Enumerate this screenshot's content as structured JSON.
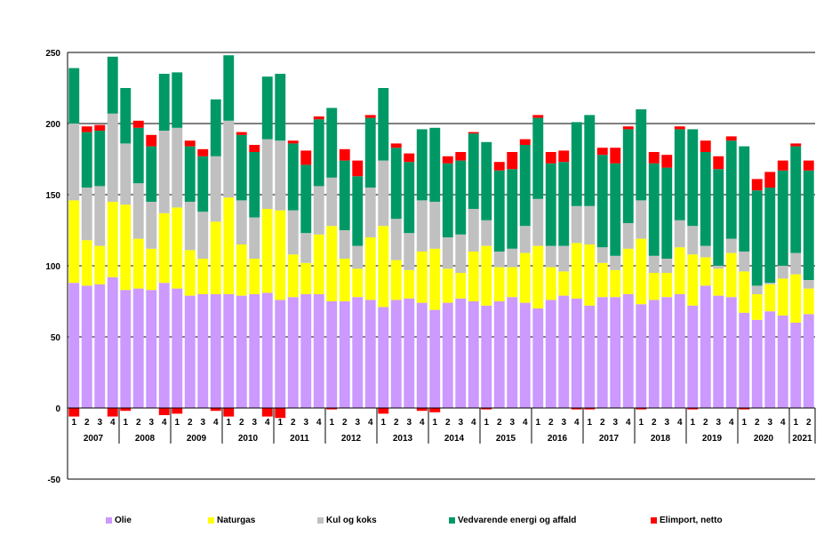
{
  "chart_data": {
    "type": "bar",
    "stacked": true,
    "title": "",
    "xlabel": "",
    "ylabel": "",
    "ylim": [
      -50,
      250
    ],
    "yticks": [
      -50,
      0,
      50,
      100,
      150,
      200,
      250
    ],
    "grid": true,
    "legend_position": "bottom",
    "quarters": [
      "1",
      "2",
      "3",
      "4",
      "1",
      "2",
      "3",
      "4",
      "1",
      "2",
      "3",
      "4",
      "1",
      "2",
      "3",
      "4",
      "1",
      "2",
      "3",
      "4",
      "1",
      "2",
      "3",
      "4",
      "1",
      "2",
      "3",
      "4",
      "1",
      "2",
      "3",
      "4",
      "1",
      "2",
      "3",
      "4",
      "1",
      "2",
      "3",
      "4",
      "1",
      "2",
      "3",
      "4",
      "1",
      "2",
      "3",
      "4",
      "1",
      "2",
      "3",
      "4",
      "1",
      "2",
      "3",
      "4",
      "1",
      "2"
    ],
    "years": [
      "2007",
      "2008",
      "2009",
      "2010",
      "2011",
      "2012",
      "2013",
      "2014",
      "2015",
      "2016",
      "2017",
      "2018",
      "2019",
      "2020",
      "2021"
    ],
    "series": [
      {
        "name": "Olie",
        "color": "#cc99ff",
        "values": [
          88,
          86,
          87,
          92,
          83,
          84,
          83,
          88,
          84,
          79,
          80,
          80,
          80,
          79,
          80,
          81,
          76,
          78,
          80,
          80,
          75,
          75,
          78,
          76,
          71,
          76,
          77,
          74,
          69,
          74,
          77,
          75,
          72,
          75,
          78,
          74,
          70,
          76,
          79,
          77,
          72,
          78,
          78,
          80,
          73,
          76,
          78,
          80,
          72,
          86,
          79,
          78,
          67,
          62,
          68,
          65,
          60,
          66
        ]
      },
      {
        "name": "Naturgas",
        "color": "#ffff00",
        "values": [
          58,
          32,
          27,
          53,
          60,
          35,
          29,
          49,
          57,
          32,
          25,
          51,
          68,
          36,
          25,
          59,
          63,
          30,
          22,
          42,
          53,
          30,
          20,
          44,
          57,
          28,
          20,
          36,
          43,
          24,
          18,
          35,
          42,
          24,
          21,
          35,
          44,
          23,
          17,
          39,
          43,
          24,
          19,
          32,
          46,
          19,
          17,
          33,
          36,
          20,
          19,
          31,
          29,
          18,
          19,
          26,
          34,
          18
        ]
      },
      {
        "name": "Kul og koks",
        "color": "#c0c0c0",
        "values": [
          54,
          37,
          42,
          62,
          43,
          39,
          33,
          58,
          56,
          34,
          33,
          46,
          54,
          31,
          29,
          49,
          49,
          31,
          21,
          34,
          34,
          20,
          16,
          35,
          46,
          29,
          26,
          36,
          33,
          22,
          27,
          30,
          18,
          11,
          13,
          19,
          33,
          15,
          18,
          26,
          27,
          11,
          10,
          18,
          27,
          12,
          10,
          19,
          20,
          8,
          2,
          10,
          14,
          6,
          1,
          9,
          15,
          6
        ]
      },
      {
        "name": "Vedvarende energi og affald",
        "color": "#009966",
        "values": [
          39,
          39,
          39,
          40,
          39,
          39,
          39,
          40,
          39,
          39,
          39,
          40,
          46,
          46,
          46,
          44,
          47,
          47,
          48,
          47,
          49,
          49,
          49,
          49,
          51,
          50,
          50,
          50,
          52,
          52,
          52,
          53,
          55,
          57,
          56,
          57,
          57,
          58,
          59,
          59,
          64,
          65,
          65,
          66,
          64,
          65,
          64,
          64,
          68,
          66,
          68,
          69,
          74,
          67,
          67,
          67,
          75,
          77
        ]
      },
      {
        "name": "Elimport, netto",
        "color": "#ff0000",
        "values": [
          -6,
          4,
          4,
          -6,
          -2,
          5,
          8,
          -5,
          -4,
          4,
          5,
          -2,
          -6,
          2,
          5,
          -6,
          -7,
          2,
          10,
          2,
          -1,
          8,
          11,
          2,
          -4,
          3,
          6,
          -2,
          -3,
          5,
          6,
          1,
          -1,
          6,
          12,
          4,
          2,
          8,
          8,
          -1,
          -1,
          5,
          11,
          2,
          -1,
          8,
          9,
          2,
          -1,
          8,
          9,
          3,
          -1,
          8,
          11,
          7,
          2,
          7
        ]
      }
    ]
  },
  "legend": {
    "items": [
      {
        "label": "Olie",
        "color": "#cc99ff"
      },
      {
        "label": "Naturgas",
        "color": "#ffff00"
      },
      {
        "label": "Kul og koks",
        "color": "#c0c0c0"
      },
      {
        "label": "Vedvarende energi og affald",
        "color": "#009966"
      },
      {
        "label": "Elimport, netto",
        "color": "#ff0000"
      }
    ]
  }
}
